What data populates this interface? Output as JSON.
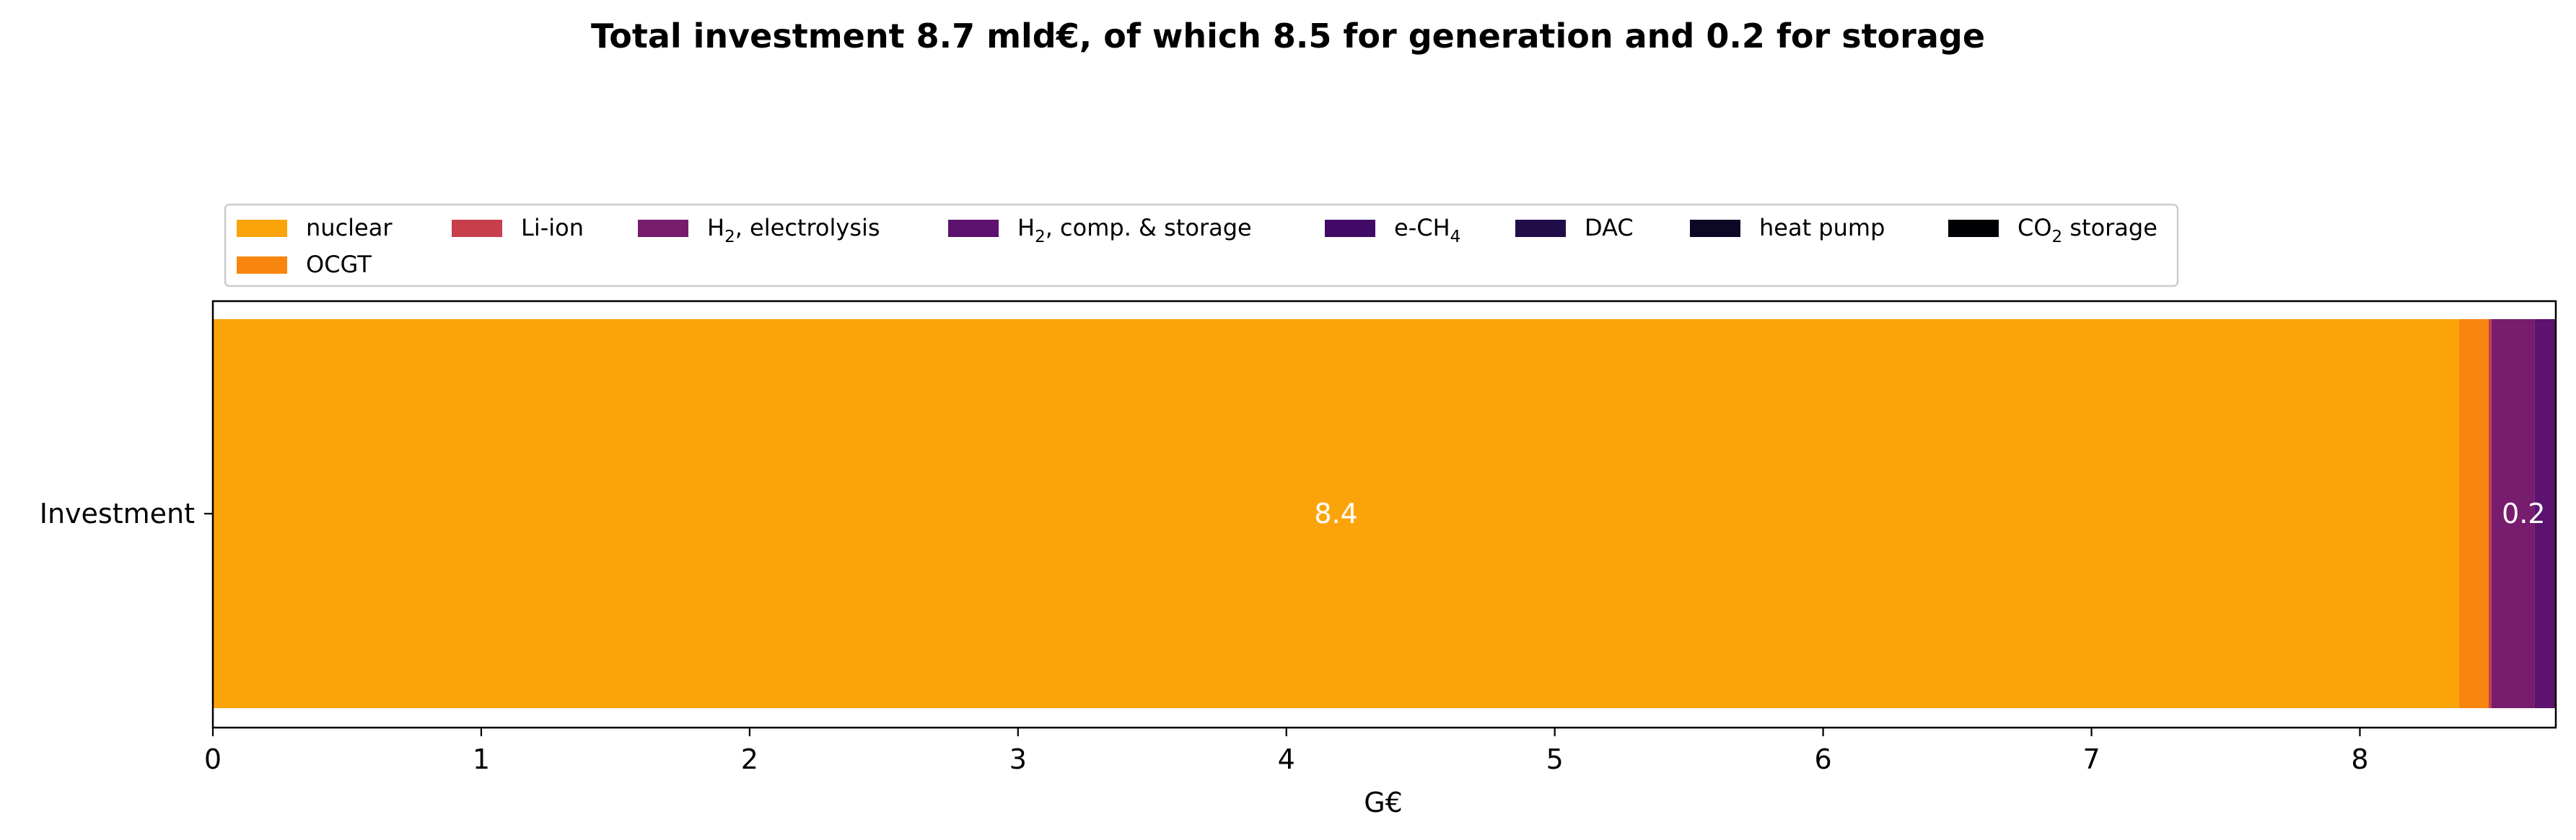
{
  "chart_data": {
    "type": "bar",
    "orientation": "horizontal",
    "stacked": true,
    "title": "Total investment 8.7 mld€, of which 8.5 for generation and 0.2 for storage",
    "xlabel": "G€",
    "ylabel": "",
    "xlim": [
      0,
      8.73
    ],
    "xticks": [
      "0",
      "1",
      "2",
      "3",
      "4",
      "5",
      "6",
      "7",
      "8"
    ],
    "categories": [
      "Investment"
    ],
    "series": [
      {
        "name": "nuclear",
        "name_base": "nuclear",
        "name_sub": "",
        "name_suffix": "",
        "value": 8.37,
        "color": "#fba40a"
      },
      {
        "name": "OCGT",
        "name_base": "OCGT",
        "name_sub": "",
        "name_suffix": "",
        "value": 0.11,
        "color": "#f8850f"
      },
      {
        "name": "Li-ion",
        "name_base": "Li-ion",
        "name_sub": "",
        "name_suffix": "",
        "value": 0.01,
        "color": "#c73e4c"
      },
      {
        "name": "H2, electrolysis",
        "name_base": "H",
        "name_sub": "2",
        "name_suffix": ", electrolysis",
        "value": 0.16,
        "color": "#781c6d"
      },
      {
        "name": "H2, comp. & storage",
        "name_base": "H",
        "name_sub": "2",
        "name_suffix": ", comp. & storage",
        "value": 0.08,
        "color": "#5c126e"
      },
      {
        "name": "e-CH4",
        "name_base": "e-CH",
        "name_sub": "4",
        "name_suffix": "",
        "value": 0.0,
        "color": "#410a67"
      },
      {
        "name": "DAC",
        "name_base": "DAC",
        "name_sub": "",
        "name_suffix": "",
        "value": 0.0,
        "color": "#210c4a"
      },
      {
        "name": "heat pump",
        "name_base": "heat pump",
        "name_sub": "",
        "name_suffix": "",
        "value": 0.0,
        "color": "#0b0725"
      },
      {
        "name": "CO2 storage",
        "name_base": "CO",
        "name_sub": "2",
        "name_suffix": " storage",
        "value": 0.0,
        "color": "#000004"
      }
    ],
    "annotations": [
      {
        "text": "8.4",
        "x": 4.185
      },
      {
        "text": "0.2",
        "x": 8.61
      }
    ],
    "legend_placement": "top-left, above axes",
    "grid": false
  }
}
